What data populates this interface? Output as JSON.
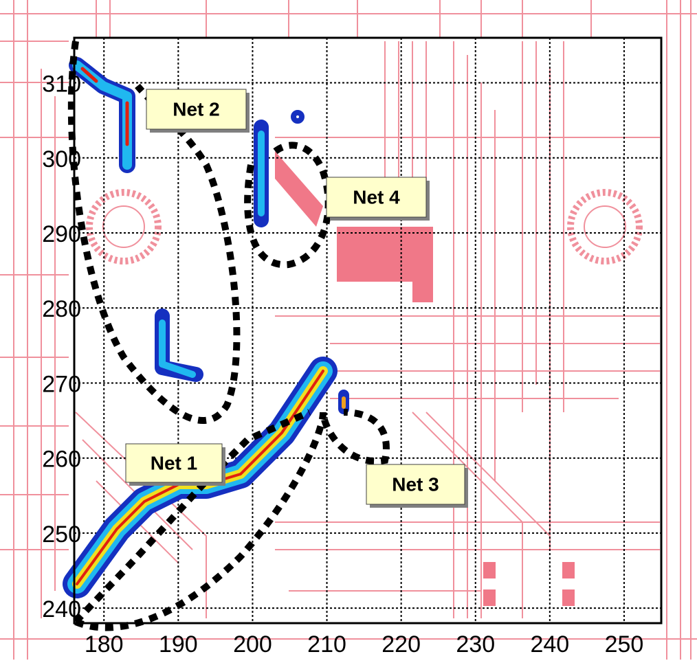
{
  "chart_data": {
    "type": "contour",
    "xlim": [
      176,
      255
    ],
    "ylim": [
      238,
      316
    ],
    "xticks": [
      180,
      190,
      200,
      210,
      220,
      230,
      240,
      250
    ],
    "yticks": [
      240,
      250,
      260,
      270,
      280,
      290,
      300,
      310
    ],
    "grid": true,
    "annotations": [
      "Net 1",
      "Net 2",
      "Net 3",
      "Net 4"
    ]
  }
}
